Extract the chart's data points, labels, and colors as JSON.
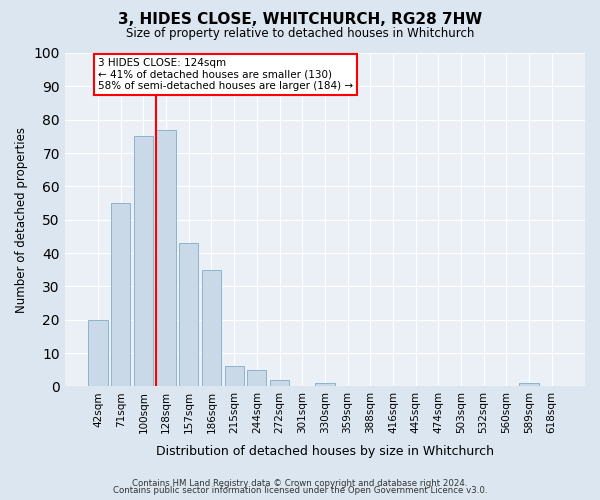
{
  "title": "3, HIDES CLOSE, WHITCHURCH, RG28 7HW",
  "subtitle": "Size of property relative to detached houses in Whitchurch",
  "xlabel": "Distribution of detached houses by size in Whitchurch",
  "ylabel": "Number of detached properties",
  "bar_labels": [
    "42sqm",
    "71sqm",
    "100sqm",
    "128sqm",
    "157sqm",
    "186sqm",
    "215sqm",
    "244sqm",
    "272sqm",
    "301sqm",
    "330sqm",
    "359sqm",
    "388sqm",
    "416sqm",
    "445sqm",
    "474sqm",
    "503sqm",
    "532sqm",
    "560sqm",
    "589sqm",
    "618sqm"
  ],
  "bar_heights": [
    20,
    55,
    75,
    77,
    43,
    35,
    6,
    5,
    2,
    0,
    1,
    0,
    0,
    0,
    0,
    0,
    0,
    0,
    0,
    1,
    0
  ],
  "bar_color": "#c9d9e8",
  "bar_edgecolor": "#8db4cc",
  "vline_index": 3,
  "vline_color": "red",
  "annotation_title": "3 HIDES CLOSE: 124sqm",
  "annotation_line1": "← 41% of detached houses are smaller (130)",
  "annotation_line2": "58% of semi-detached houses are larger (184) →",
  "ylim": [
    0,
    100
  ],
  "yticks": [
    0,
    10,
    20,
    30,
    40,
    50,
    60,
    70,
    80,
    90,
    100
  ],
  "footer1": "Contains HM Land Registry data © Crown copyright and database right 2024.",
  "footer2": "Contains public sector information licensed under the Open Government Licence v3.0.",
  "bg_color": "#dce6f0",
  "plot_bg_color": "#eaf0f6"
}
